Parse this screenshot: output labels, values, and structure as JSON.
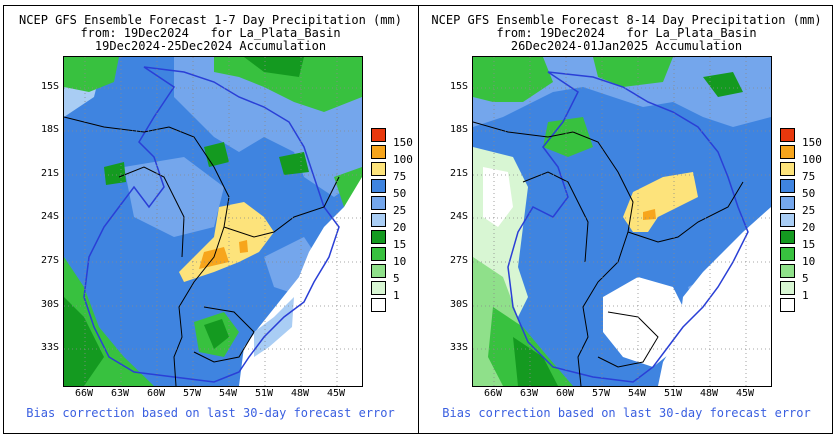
{
  "panels": [
    {
      "title_lines": [
        "NCEP GFS Ensemble Forecast 1-7 Day Precipitation (mm)",
        "from: 19Dec2024   for La_Plata_Basin",
        "19Dec2024-25Dec2024 Accumulation"
      ],
      "lat_ticks": [
        "15S",
        "18S",
        "21S",
        "24S",
        "27S",
        "30S",
        "33S"
      ],
      "lon_ticks": [
        "66W",
        "63W",
        "60W",
        "57W",
        "54W",
        "51W",
        "48W",
        "45W"
      ],
      "footer": "Bias correction based on last 30-day forecast error"
    },
    {
      "title_lines": [
        "NCEP GFS Ensemble Forecast 8-14 Day Precipitation (mm)",
        "from: 19Dec2024   for La_Plata_Basin",
        "26Dec2024-01Jan2025 Accumulation"
      ],
      "lat_ticks": [
        "15S",
        "18S",
        "21S",
        "24S",
        "27S",
        "30S",
        "33S"
      ],
      "lon_ticks": [
        "66W",
        "63W",
        "60W",
        "57W",
        "54W",
        "51W",
        "48W",
        "45W"
      ],
      "footer": "Bias correction based on last 30-day forecast error"
    }
  ],
  "legend": [
    {
      "label": "150",
      "color": "#e8380d"
    },
    {
      "label": "100",
      "color": "#f7a51c"
    },
    {
      "label": "75",
      "color": "#fde37b"
    },
    {
      "label": "50",
      "color": "#3f84e0"
    },
    {
      "label": "25",
      "color": "#74a6ec"
    },
    {
      "label": "20",
      "color": "#a9cdf4"
    },
    {
      "label": "15",
      "color": "#149a20"
    },
    {
      "label": "10",
      "color": "#38c13f"
    },
    {
      "label": "5",
      "color": "#8fe08a"
    },
    {
      "label": "1",
      "color": "#d8f6d3"
    }
  ],
  "legend_bottom_label": "1"
}
